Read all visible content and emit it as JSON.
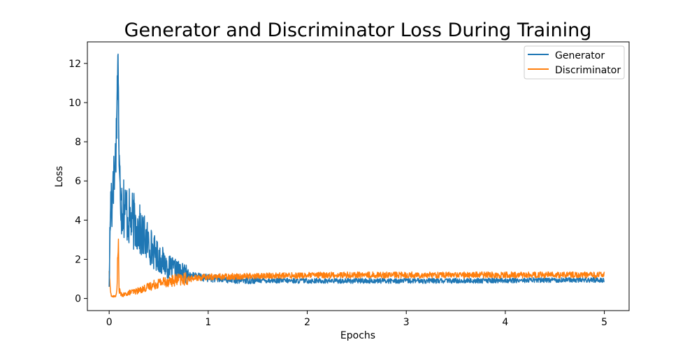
{
  "chart_data": {
    "type": "line",
    "title": "Generator and Discriminator Loss During Training",
    "xlabel": "Epochs",
    "ylabel": "Loss",
    "xlim": [
      -0.22,
      5.25
    ],
    "ylim": [
      -0.62,
      13.1
    ],
    "xticks": [
      0,
      1,
      2,
      3,
      4,
      5
    ],
    "yticks": [
      0,
      2,
      4,
      6,
      8,
      10,
      12
    ],
    "grid": false,
    "legend_position": "top-right",
    "series": [
      {
        "name": "Generator",
        "color": "#1f77b4",
        "x": [
          0.0,
          0.01,
          0.02,
          0.03,
          0.04,
          0.05,
          0.06,
          0.07,
          0.08,
          0.09,
          0.1,
          0.12,
          0.14,
          0.16,
          0.18,
          0.2,
          0.22,
          0.25,
          0.28,
          0.3,
          0.33,
          0.36,
          0.4,
          0.44,
          0.48,
          0.52,
          0.56,
          0.6,
          0.65,
          0.7,
          0.75,
          0.8,
          0.9,
          1.0,
          1.1,
          1.2,
          1.3,
          1.5,
          1.7,
          2.0,
          2.5,
          3.0,
          3.5,
          4.0,
          4.5,
          5.0
        ],
        "y": [
          0.6,
          3.8,
          5.5,
          4.6,
          6.5,
          5.8,
          7.0,
          7.8,
          10.2,
          12.5,
          6.8,
          5.0,
          4.9,
          4.6,
          4.4,
          4.1,
          4.0,
          3.9,
          3.7,
          3.6,
          3.2,
          3.1,
          2.8,
          2.5,
          2.2,
          2.0,
          1.8,
          1.6,
          1.5,
          1.4,
          1.3,
          1.2,
          1.1,
          1.05,
          1.0,
          0.98,
          0.96,
          0.93,
          0.91,
          0.9,
          0.9,
          0.9,
          0.9,
          0.92,
          0.95,
          0.95
        ]
      },
      {
        "name": "Discriminator",
        "color": "#ff7f0e",
        "x": [
          0.0,
          0.01,
          0.02,
          0.03,
          0.05,
          0.07,
          0.08,
          0.09,
          0.1,
          0.12,
          0.14,
          0.16,
          0.18,
          0.2,
          0.25,
          0.3,
          0.35,
          0.4,
          0.45,
          0.5,
          0.55,
          0.6,
          0.7,
          0.8,
          0.9,
          1.0,
          1.2,
          1.5,
          2.0,
          2.5,
          3.0,
          3.5,
          4.0,
          4.5,
          5.0
        ],
        "y": [
          1.4,
          0.6,
          0.15,
          0.1,
          0.1,
          0.15,
          0.5,
          3.5,
          0.45,
          0.2,
          0.18,
          0.2,
          0.25,
          0.3,
          0.35,
          0.4,
          0.5,
          0.6,
          0.7,
          0.8,
          0.85,
          0.9,
          0.95,
          1.0,
          1.05,
          1.1,
          1.12,
          1.15,
          1.18,
          1.2,
          1.2,
          1.2,
          1.2,
          1.2,
          1.2
        ]
      }
    ]
  }
}
